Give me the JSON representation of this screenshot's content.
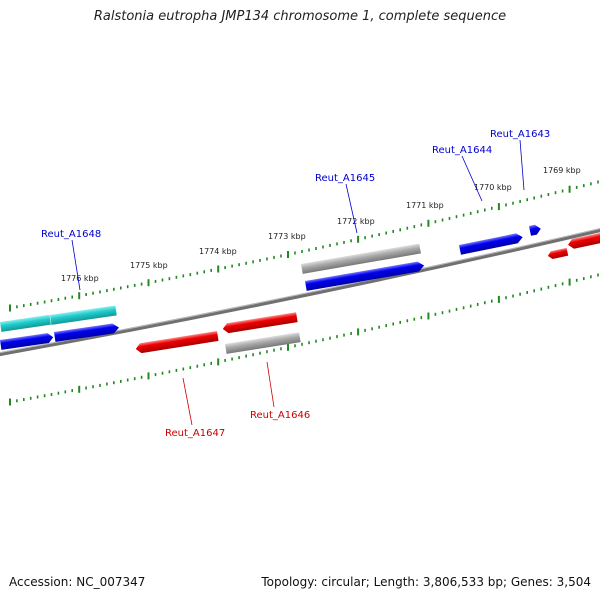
{
  "title": "Ralstonia eutropha JMP134 chromosome 1, complete sequence",
  "footer": {
    "accession": "Accession: NC_007347",
    "summary": "Topology: circular; Length: 3,806,533 bp; Genes: 3,504"
  },
  "colors": {
    "forward": "#0000ee",
    "reverse": "#ee0000",
    "cyan": "#22cccc",
    "grey": "#aaaaaa",
    "backbone": "#707070",
    "ticks": "#228822"
  },
  "kbp_labels": [
    "1776 kbp",
    "1775 kbp",
    "1774 kbp",
    "1773 kbp",
    "1772 kbp",
    "1771 kbp",
    "1770 kbp",
    "1769 kbp"
  ],
  "gene_labels": [
    {
      "name": "Reut_A1648",
      "strand": "forward"
    },
    {
      "name": "Reut_A1645",
      "strand": "forward"
    },
    {
      "name": "Reut_A1644",
      "strand": "forward"
    },
    {
      "name": "Reut_A1643",
      "strand": "forward"
    },
    {
      "name": "Reut_A1647",
      "strand": "reverse"
    },
    {
      "name": "Reut_A1646",
      "strand": "reverse"
    }
  ]
}
